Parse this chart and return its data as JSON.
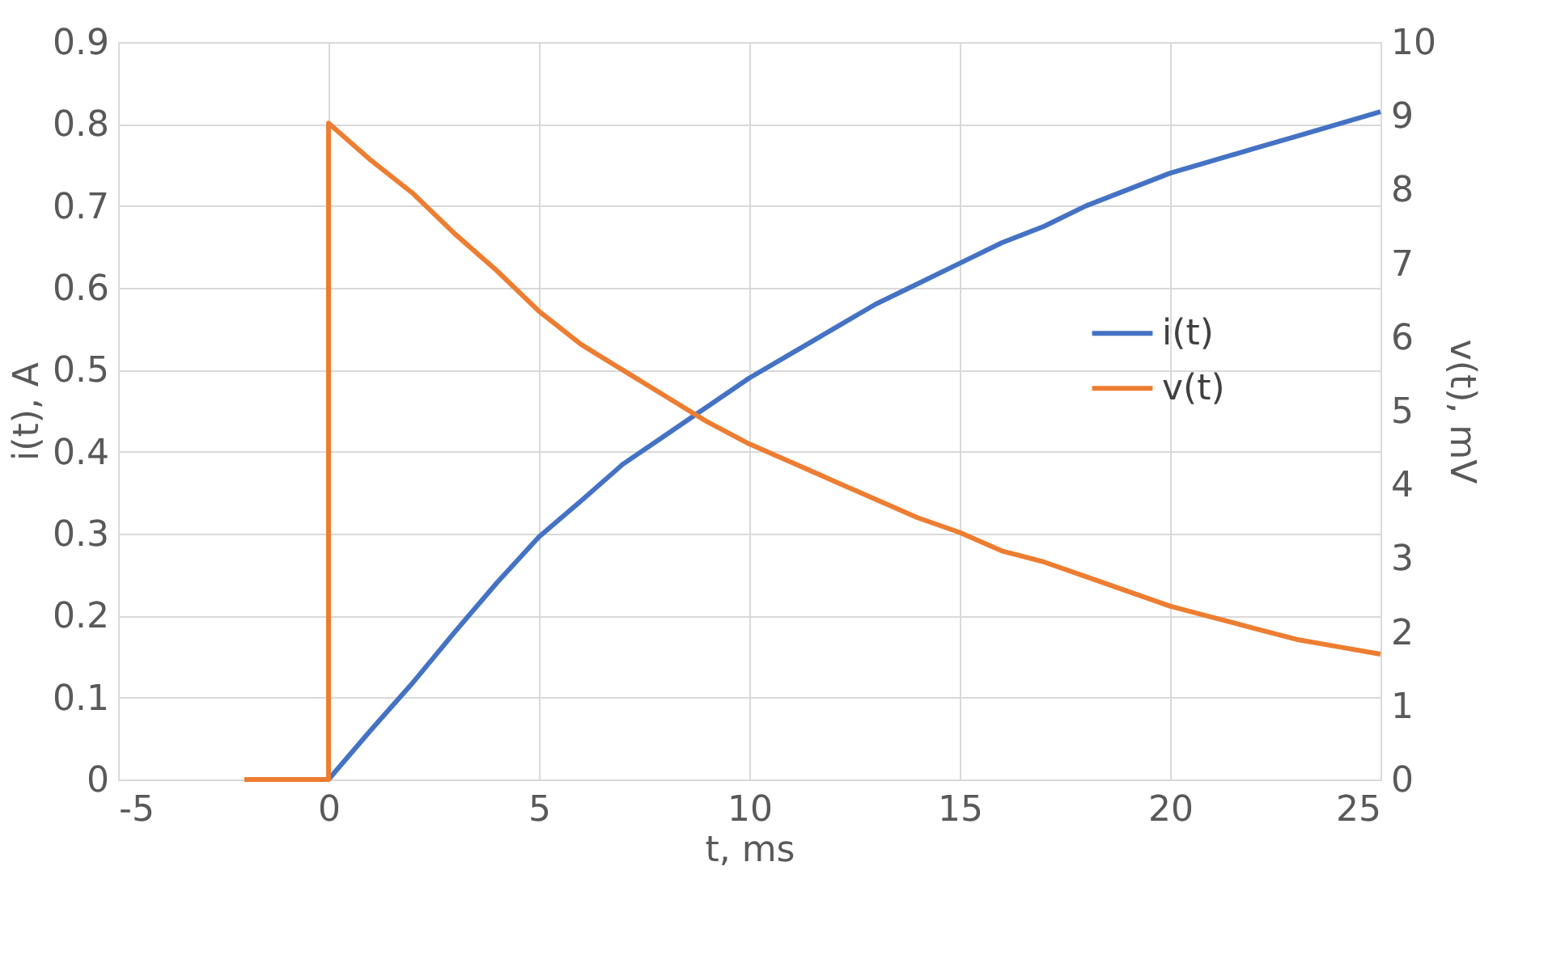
{
  "chart_data": {
    "type": "line",
    "xlabel": "t, ms",
    "ylabel": "i(t), A",
    "y2label": "v(t), mV",
    "xlim": [
      -5,
      25
    ],
    "xticks": [
      -5,
      0,
      5,
      10,
      15,
      20,
      25
    ],
    "ylim": [
      0,
      0.9
    ],
    "yticks": [
      0,
      0.1,
      0.2,
      0.3,
      0.4,
      0.5,
      0.6,
      0.7,
      0.8,
      0.9
    ],
    "y2lim": [
      0,
      10
    ],
    "y2ticks": [
      0,
      1,
      2,
      3,
      4,
      5,
      6,
      7,
      8,
      9,
      10
    ],
    "grid": true,
    "legend": "right",
    "marker": "none",
    "line_style": "solid",
    "series": [
      {
        "name": "i(t)",
        "color": "#4472c4",
        "x": [
          0,
          1,
          2,
          3,
          4,
          5,
          6,
          7,
          8,
          9,
          10,
          11,
          12,
          13,
          14,
          15,
          16,
          17,
          18,
          19,
          20,
          21,
          22,
          23,
          24,
          25
        ],
        "values": [
          0,
          0.06,
          0.118,
          0.18,
          0.24,
          0.296,
          0.34,
          0.385,
          0.42,
          0.455,
          0.49,
          0.52,
          0.55,
          0.58,
          0.605,
          0.63,
          0.655,
          0.675,
          0.7,
          0.72,
          0.74,
          0.755,
          0.77,
          0.785,
          0.8,
          0.815
        ]
      },
      {
        "name": "v(t)",
        "color": "#ed7d31",
        "axis": "y2",
        "x": [
          -2,
          0,
          0,
          1,
          2,
          3,
          4,
          5,
          6,
          7,
          8,
          9,
          10,
          11,
          12,
          13,
          14,
          15,
          16,
          17,
          18,
          19,
          20,
          21,
          22,
          23,
          24,
          25
        ],
        "values": [
          0,
          0,
          8.9,
          8.4,
          7.95,
          7.4,
          6.9,
          6.35,
          5.9,
          5.55,
          5.2,
          4.85,
          4.55,
          4.3,
          4.05,
          3.8,
          3.55,
          3.35,
          3.1,
          2.95,
          2.75,
          2.55,
          2.35,
          2.2,
          2.05,
          1.9,
          1.8,
          1.7
        ]
      }
    ]
  }
}
